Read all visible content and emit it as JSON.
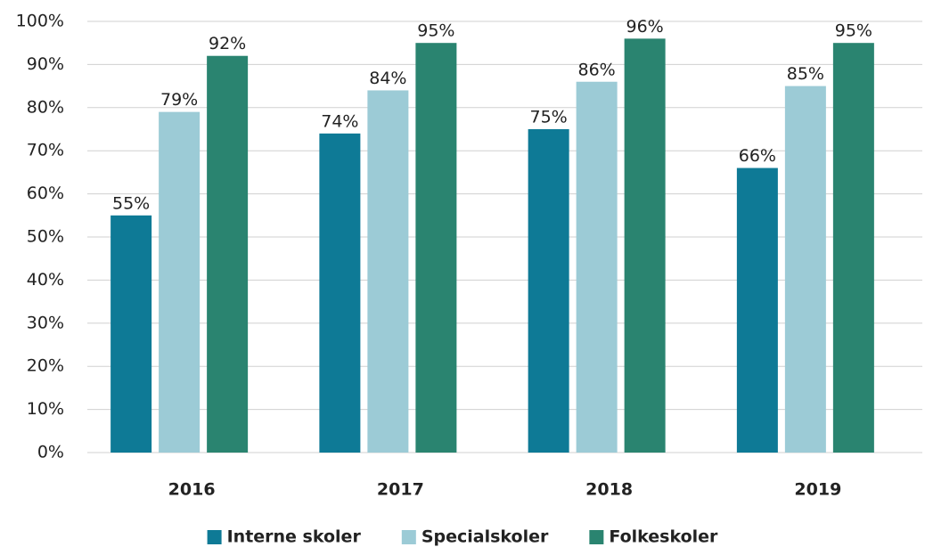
{
  "chart_data": {
    "type": "bar",
    "categories": [
      "2016",
      "2017",
      "2018",
      "2019"
    ],
    "series": [
      {
        "name": "Interne skoler",
        "color": "#0e7a96",
        "values": [
          55,
          74,
          75,
          66
        ],
        "value_labels": [
          "55%",
          "74%",
          "75%",
          "66%"
        ]
      },
      {
        "name": "Specialskoler",
        "color": "#9ccbd6",
        "values": [
          79,
          84,
          86,
          85
        ],
        "value_labels": [
          "79%",
          "84%",
          "86%",
          "85%"
        ]
      },
      {
        "name": "Folkeskoler",
        "color": "#2a8470",
        "values": [
          92,
          95,
          96,
          95
        ],
        "value_labels": [
          "92%",
          "95%",
          "96%",
          "95%"
        ]
      }
    ],
    "ylim": [
      0,
      100
    ],
    "yticks": [
      {
        "value": 0,
        "label": "0%"
      },
      {
        "value": 10,
        "label": "10%"
      },
      {
        "value": 20,
        "label": "20%"
      },
      {
        "value": 30,
        "label": "30%"
      },
      {
        "value": 40,
        "label": "40%"
      },
      {
        "value": 50,
        "label": "50%"
      },
      {
        "value": 60,
        "label": "60%"
      },
      {
        "value": 70,
        "label": "70%"
      },
      {
        "value": 80,
        "label": "80%"
      },
      {
        "value": 90,
        "label": "90%"
      },
      {
        "value": 100,
        "label": "100%"
      }
    ],
    "grid": true,
    "legend": "bottom"
  }
}
